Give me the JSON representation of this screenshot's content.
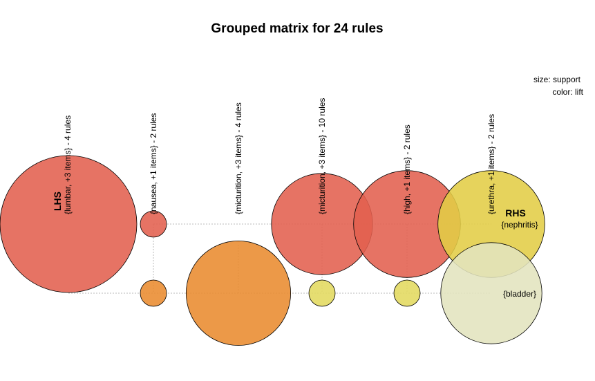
{
  "chart_data": {
    "type": "scatter",
    "title": "Grouped matrix for 24 rules",
    "legend": {
      "size_text": "size: support",
      "color_text": "color: lift",
      "placement": "top-right"
    },
    "lhs_title": "LHS",
    "rhs_title": "RHS",
    "lhs_groups": [
      "{lumbar, +3 items} - 4 rules",
      "{nausea, +1 items} - 2 rules",
      "{micturition, +3 items} - 4 rules",
      "{micturition, +3 items} - 10 rules",
      "{high, +1 items} - 2 rules",
      "{urethra, +1 items} - 2 rules"
    ],
    "rhs_items": [
      "{nephritis}",
      "{bladder}"
    ],
    "points": [
      {
        "group": 0,
        "rhs": 0,
        "support": 1.0,
        "color": "#E2604F"
      },
      {
        "group": 1,
        "rhs": 0,
        "support": 0.04,
        "color": "#E2604F"
      },
      {
        "group": 3,
        "rhs": 0,
        "support": 0.48,
        "color": "#E2604F"
      },
      {
        "group": 4,
        "rhs": 0,
        "support": 0.55,
        "color": "#E2604F"
      },
      {
        "group": 5,
        "rhs": 0,
        "support": 0.55,
        "color": "#E3CD45"
      },
      {
        "group": 1,
        "rhs": 1,
        "support": 0.04,
        "color": "#E98B2F"
      },
      {
        "group": 2,
        "rhs": 1,
        "support": 0.52,
        "color": "#E98B2F"
      },
      {
        "group": 3,
        "rhs": 1,
        "support": 0.04,
        "color": "#E3DA5E"
      },
      {
        "group": 4,
        "rhs": 1,
        "support": 0.04,
        "color": "#E3DA5E"
      },
      {
        "group": 5,
        "rhs": 1,
        "support": 0.48,
        "color": "#E2E4BE"
      }
    ]
  }
}
